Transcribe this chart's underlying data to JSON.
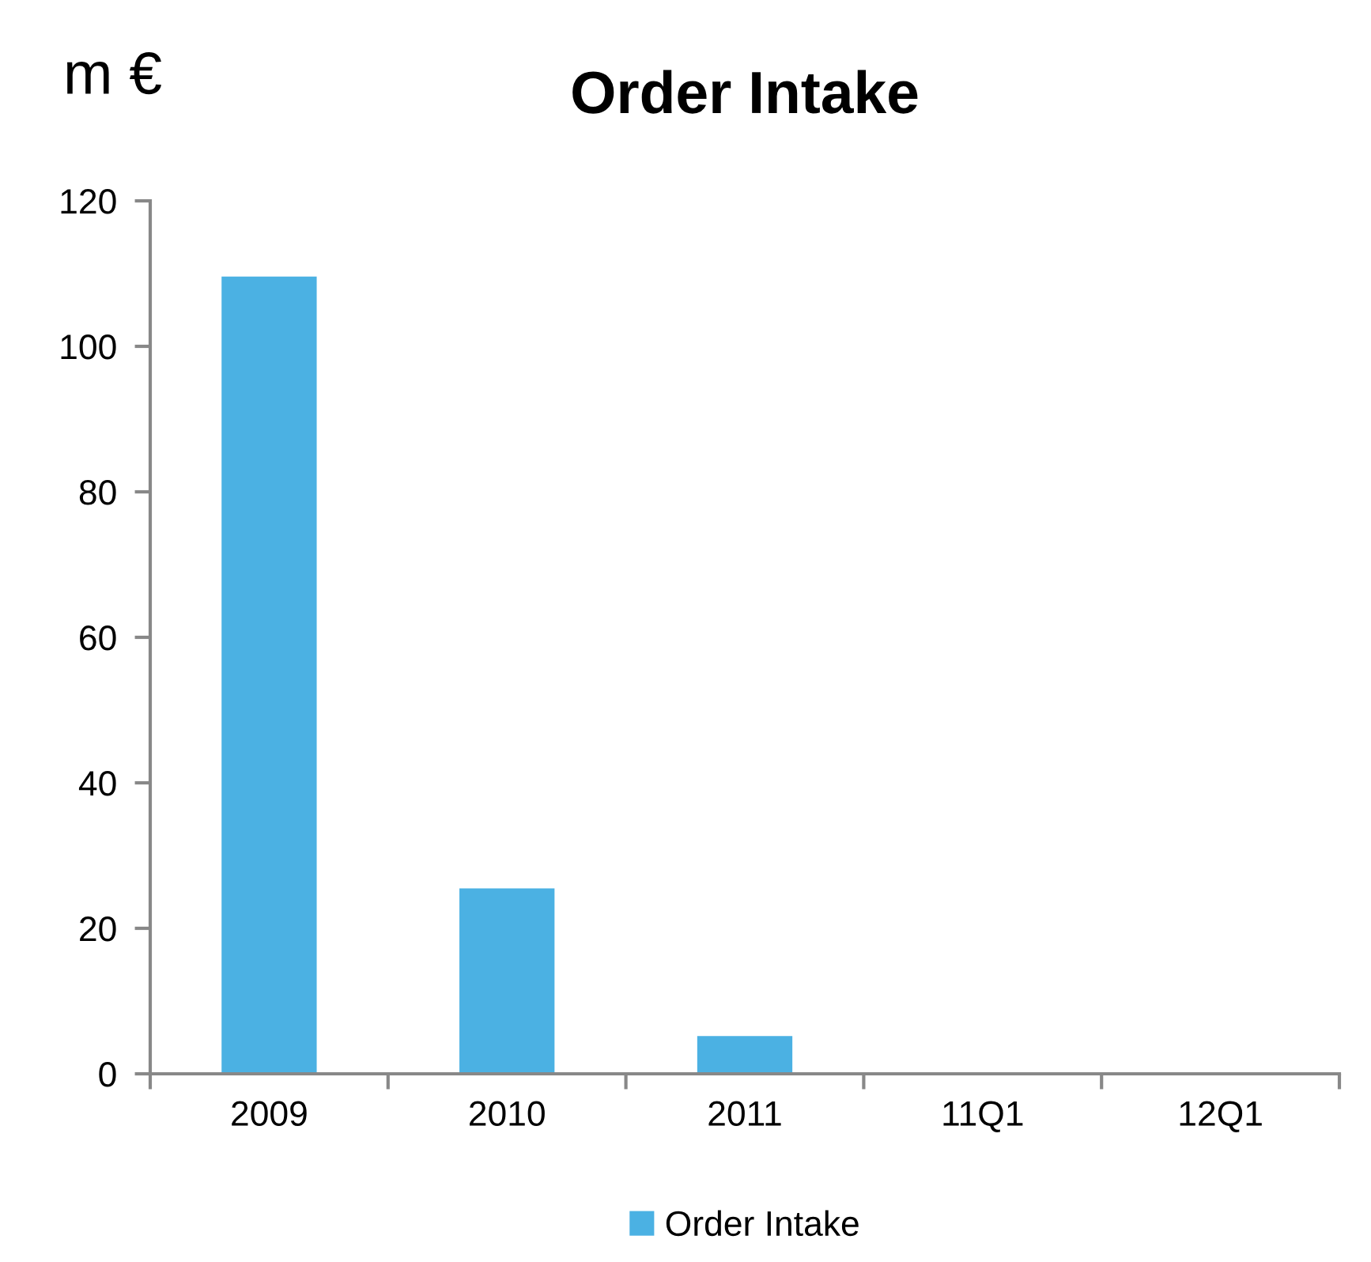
{
  "chart_data": {
    "type": "bar",
    "title": "Order Intake",
    "ylabel": "m €",
    "categories": [
      "2009",
      "2010",
      "2011",
      "11Q1",
      "12Q1"
    ],
    "series": [
      {
        "name": "Order Intake",
        "color": "#4bb1e3",
        "values": [
          109.6,
          25.5,
          5.2,
          0,
          0
        ]
      }
    ],
    "ylim": [
      0,
      120
    ],
    "yticks": [
      0,
      20,
      40,
      60,
      80,
      100,
      120
    ],
    "grid": false,
    "legend": "bottom"
  }
}
